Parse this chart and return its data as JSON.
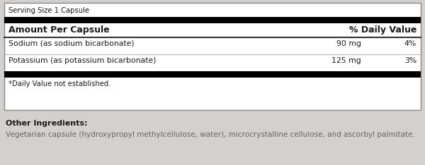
{
  "serving_size": "Serving Size 1 Capsule",
  "amount_per_capsule": "Amount Per Capsule",
  "daily_value_header": "% Daily Value",
  "rows": [
    {
      "name": "Sodium (as sodium bicarbonate)",
      "amount": "90 mg",
      "dv": "4%"
    },
    {
      "name": "Potassium (as potassium bicarbonate)",
      "amount": "125 mg",
      "dv": "3%"
    }
  ],
  "footnote": "*Daily Value not established.",
  "other_ingredients_label": "Other Ingredients:",
  "other_ingredients_text": "Vegetarian capsule (hydroxypropyl methylcellulose, water), microcrystalline cellulose, and ascorbyl palmitate.",
  "bg_color": "#d4d0ce",
  "box_bg": "#ffffff",
  "black_bar": "#000000",
  "thin_line": "#aaaaaa",
  "medium_line": "#333333",
  "text_color": "#1a1a1a",
  "other_text_color": "#666666",
  "box_border": "#888888"
}
